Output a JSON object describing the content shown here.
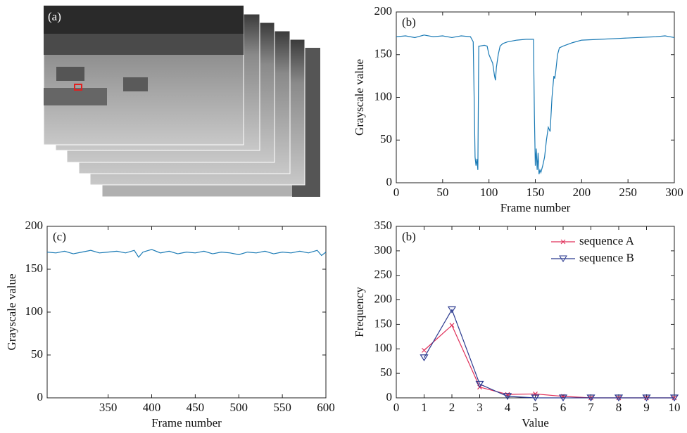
{
  "image_panel": {
    "label": "(a)"
  },
  "chart_data": [
    {
      "type": "line",
      "title": "(b)",
      "xlabel": "Frame number",
      "ylabel": "Grayscale value",
      "xlim": [
        0,
        300
      ],
      "xticks": [
        0,
        50,
        100,
        150,
        200,
        250,
        300
      ],
      "ylim": [
        0,
        200
      ],
      "yticks": [
        0,
        50,
        100,
        150,
        200
      ],
      "x": [
        0,
        10,
        20,
        30,
        40,
        50,
        60,
        70,
        80,
        83,
        84,
        85,
        86,
        87,
        88,
        89,
        90,
        95,
        98,
        100,
        102,
        104,
        106,
        107,
        108,
        110,
        112,
        115,
        120,
        130,
        140,
        148,
        149,
        150,
        151,
        152,
        153,
        154,
        155,
        156,
        158,
        160,
        162,
        164,
        166,
        168,
        170,
        171,
        172,
        174,
        176,
        180,
        190,
        200,
        220,
        240,
        260,
        280,
        290,
        300
      ],
      "series": [
        {
          "color": "#1a7ab5",
          "values": [
            171,
            172,
            170,
            173,
            171,
            172,
            170,
            172,
            171,
            165,
            100,
            30,
            20,
            28,
            15,
            160,
            160,
            161,
            160,
            150,
            145,
            140,
            125,
            120,
            135,
            150,
            160,
            163,
            165,
            167,
            168,
            168,
            80,
            20,
            40,
            15,
            35,
            10,
            15,
            12,
            20,
            30,
            50,
            65,
            60,
            100,
            125,
            122,
            130,
            150,
            158,
            160,
            164,
            167,
            168,
            169,
            170,
            171,
            172,
            170
          ]
        }
      ]
    },
    {
      "type": "line",
      "title": "(c)",
      "xlabel": "Frame number",
      "ylabel": "Grayscale value",
      "xlim": [
        280,
        600
      ],
      "xticks": [
        350,
        400,
        450,
        500,
        550,
        600
      ],
      "ylim": [
        0,
        200
      ],
      "yticks": [
        0,
        50,
        100,
        150,
        200
      ],
      "x": [
        280,
        290,
        300,
        310,
        320,
        330,
        340,
        350,
        360,
        370,
        380,
        385,
        390,
        400,
        410,
        420,
        430,
        440,
        450,
        460,
        470,
        480,
        490,
        500,
        510,
        520,
        530,
        540,
        550,
        560,
        570,
        580,
        590,
        595,
        600
      ],
      "series": [
        {
          "color": "#1a7ab5",
          "values": [
            170,
            169,
            171,
            168,
            170,
            172,
            169,
            170,
            171,
            169,
            172,
            164,
            170,
            173,
            169,
            171,
            168,
            170,
            169,
            171,
            168,
            170,
            169,
            167,
            170,
            169,
            171,
            168,
            170,
            169,
            171,
            169,
            172,
            166,
            170
          ]
        }
      ]
    },
    {
      "type": "line",
      "title": "(b)",
      "xlabel": "Value",
      "ylabel": "Frequency",
      "xlim": [
        0,
        10
      ],
      "xticks": [
        0,
        1,
        2,
        3,
        4,
        5,
        6,
        7,
        8,
        9,
        10
      ],
      "ylim": [
        0,
        350
      ],
      "yticks": [
        0,
        50,
        100,
        150,
        200,
        250,
        300,
        350
      ],
      "legend": "upper right",
      "x": [
        1,
        2,
        3,
        4,
        5,
        6,
        7,
        8,
        9,
        10
      ],
      "series": [
        {
          "name": "sequence A",
          "color": "#e0305a",
          "marker": "x",
          "values": [
            97,
            148,
            22,
            7,
            8,
            3,
            0,
            0,
            0,
            0
          ]
        },
        {
          "name": "sequence B",
          "color": "#2b3a8f",
          "marker": "triangle",
          "values": [
            82,
            180,
            28,
            3,
            0,
            0,
            0,
            0,
            0,
            0
          ]
        }
      ]
    }
  ]
}
